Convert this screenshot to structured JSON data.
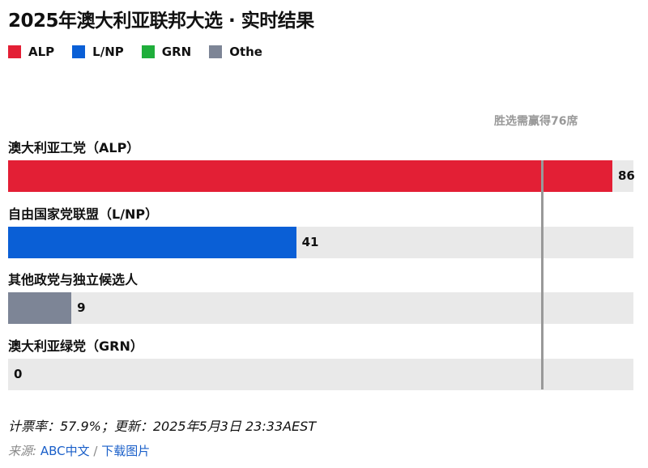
{
  "chart_data": {
    "type": "bar",
    "orientation": "horizontal",
    "title": "2025年澳大利亚联邦大选 · 实时结果",
    "categories": [
      "澳大利亚工党（ALP）",
      "自由国家党联盟（L/NP）",
      "其他政党与独立候选人",
      "澳大利亚绿党（GRN）"
    ],
    "values": [
      86,
      41,
      9,
      0
    ],
    "colors": [
      "#e31f35",
      "#0a5fd6",
      "#7d8596",
      "#1fae3b"
    ],
    "xlim": [
      0,
      89
    ],
    "majority": {
      "value": 76,
      "label": "胜选需赢得76席"
    },
    "legend": [
      {
        "label": "ALP",
        "color": "#e31f35"
      },
      {
        "label": "L/NP",
        "color": "#0a5fd6"
      },
      {
        "label": "GRN",
        "color": "#1fae3b"
      },
      {
        "label": "Othe",
        "color": "#7d8596"
      }
    ],
    "legend_position": "top-left",
    "track_color": "#e9e9e9"
  },
  "footer": {
    "status": "计票率：57.9%；更新：2025年5月3日 23:33AEST",
    "source_label": "来源:",
    "source_link": "ABC中文",
    "separator": "/",
    "download_link": "下载图片"
  }
}
